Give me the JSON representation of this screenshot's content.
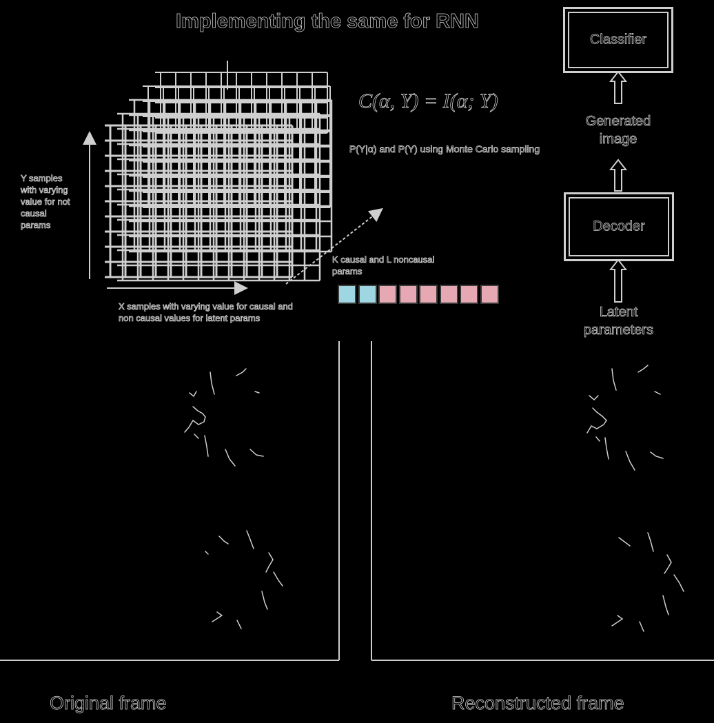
{
  "title": "Implementing the same for RNN",
  "formula": "C(α, Y) = I(α; Y)",
  "monte_carlo_note": "P(Y|α) and P(Y) using Monte Carlo sampling",
  "y_axis_note": "Y samples with varying value for not causal params",
  "x_axis_note": "X samples with varying value for causal and non causal values for latent params",
  "vector_label": "K causal and L noncausal params",
  "vector": {
    "causal_count": 2,
    "noncausal_count": 6,
    "causal_color": "#9ed6e2",
    "noncausal_color": "#e6a9b3"
  },
  "pipeline": {
    "classifier": "Classifier",
    "generated_image": "Generated image",
    "decoder": "Decoder",
    "latent": "Latent parameters"
  },
  "frames": {
    "original_caption": "Original frame",
    "reconstructed_caption": "Reconstructed frame"
  }
}
